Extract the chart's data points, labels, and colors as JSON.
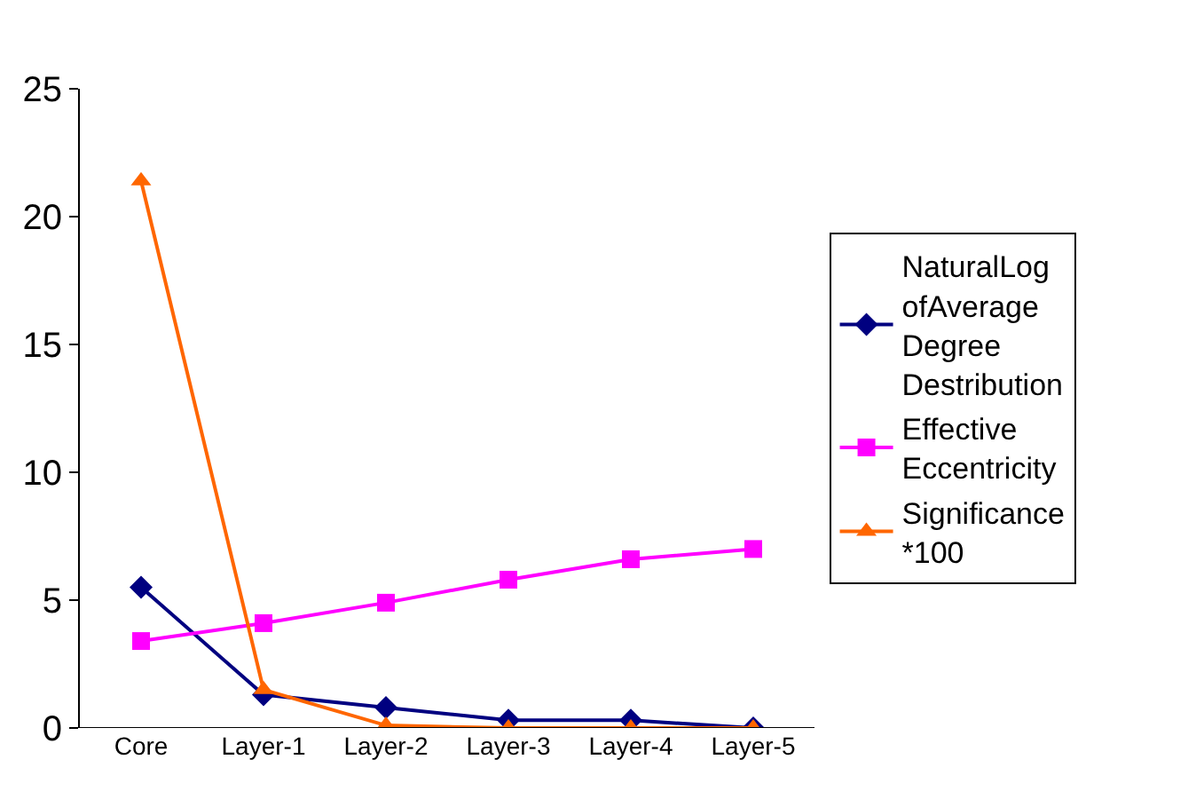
{
  "chart_data": {
    "type": "line",
    "categories": [
      "Core",
      "Layer-1",
      "Layer-2",
      "Layer-3",
      "Layer-4",
      "Layer-5"
    ],
    "series": [
      {
        "name": "NaturalLog ofAverage Degree Destribution",
        "color": "#000080",
        "marker": "diamond",
        "values": [
          5.5,
          1.3,
          0.8,
          0.3,
          0.3,
          0.0
        ]
      },
      {
        "name": "Effective Eccentricity",
        "color": "#ff00ff",
        "marker": "square",
        "values": [
          3.4,
          4.1,
          4.9,
          5.8,
          6.6,
          7.0
        ]
      },
      {
        "name": "Significance *100",
        "color": "#ff6600",
        "marker": "triangle",
        "values": [
          21.4,
          1.5,
          0.1,
          0.0,
          0.0,
          0.0
        ]
      }
    ],
    "ylim": [
      0,
      25
    ],
    "yticks": [
      0,
      5,
      10,
      15,
      20,
      25
    ],
    "grid": false,
    "legend": "right"
  }
}
